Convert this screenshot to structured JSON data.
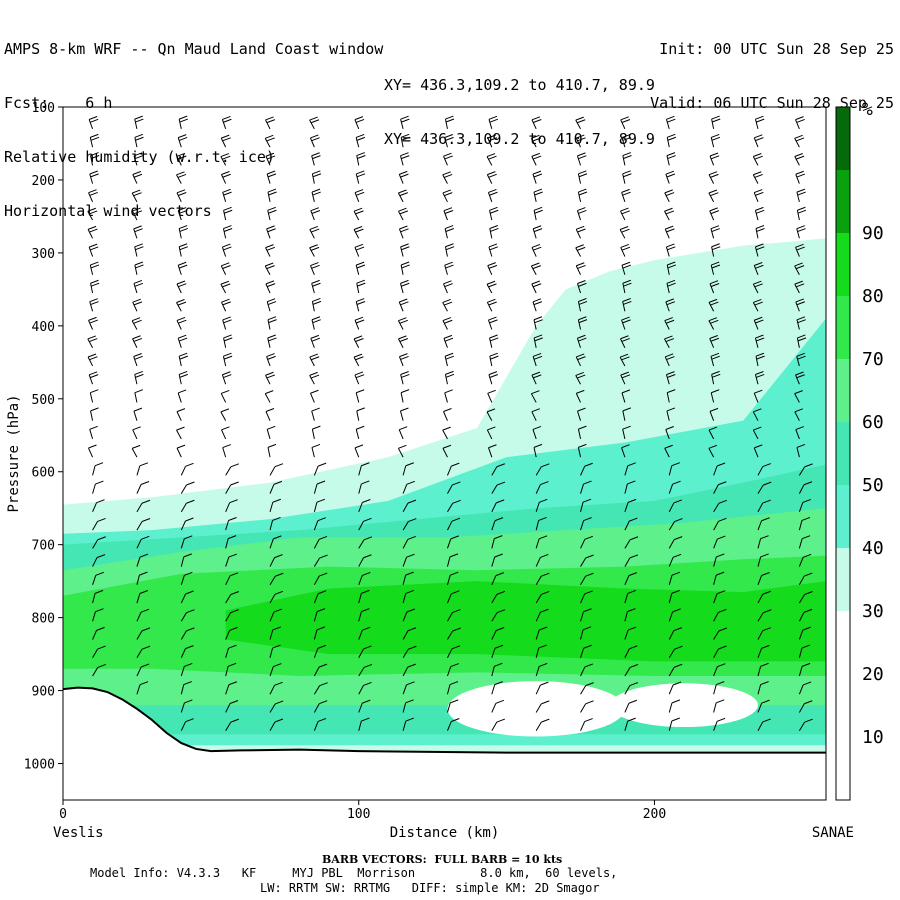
{
  "header": {
    "title": "AMPS 8-km WRF -- Qn Maud Land Coast window",
    "fcst": "Fcst:    6 h",
    "line3": "Relative humidity (w.r.t. ice)",
    "line4": "Horizontal wind vectors",
    "xy1": "XY= 436.3,109.2 to 410.7, 89.9",
    "xy2": "XY= 436.3,109.2 to 410.7, 89.9",
    "init": "Init: 00 UTC Sun 28 Sep 25",
    "valid": "Valid: 06 UTC Sun 28 Sep 25"
  },
  "footer": {
    "barb": "BARB VECTORS:  FULL BARB = 10 kts",
    "model": "Model Info: V4.3.3   KF     MYJ PBL  Morrison         8.0 km,  60 levels,",
    "phys": "LW: RRTM SW: RRTMG   DIFF: simple KM: 2D Smagor"
  },
  "colors": {
    "rh_30": "#c6fbe9",
    "rh_40": "#5cf0cf",
    "rh_50": "#44e6b4",
    "rh_60": "#5ef08a",
    "rh_70": "#33e84b",
    "rh_80": "#14dc1c",
    "rh_90": "#0aa10e",
    "rh_top": "#066a0a",
    "terrain": "#000000",
    "barb": "#000000"
  },
  "chart_data": {
    "type": "cross-section",
    "xlabel": "Distance (km)",
    "ylabel": "Pressure (hPa)",
    "x_left_label": "Veslis",
    "x_right_label": "SANAE",
    "xlim": [
      0,
      258
    ],
    "ylim": [
      1050,
      100
    ],
    "x_ticks": [
      0,
      100,
      200
    ],
    "y_ticks": [
      100,
      200,
      300,
      400,
      500,
      600,
      700,
      800,
      900,
      1000
    ],
    "colorbar": {
      "unit": "%",
      "levels": [
        10,
        20,
        30,
        40,
        50,
        60,
        70,
        80,
        90
      ],
      "band_colors": [
        "#ffffff",
        "#ffffff",
        "#ffffff",
        "#c6fbe9",
        "#5cf0cf",
        "#44e6b4",
        "#5ef08a",
        "#33e84b",
        "#14dc1c",
        "#0aa10e",
        "#066a0a"
      ]
    },
    "terrain_surface": {
      "x": [
        0,
        5,
        10,
        15,
        20,
        25,
        30,
        35,
        40,
        45,
        50,
        60,
        80,
        100,
        150,
        200,
        258
      ],
      "p": [
        898,
        896,
        897,
        902,
        912,
        925,
        940,
        958,
        972,
        980,
        983,
        982,
        981,
        983,
        985,
        985,
        985
      ]
    },
    "rh_regions": [
      {
        "level": 30,
        "x": [
          160,
          170,
          185,
          200,
          215,
          230,
          245,
          258,
          258,
          200,
          150,
          100,
          60,
          20,
          0,
          0,
          30,
          70,
          110,
          140,
          160
        ],
        "p": [
          400,
          350,
          325,
          310,
          300,
          290,
          285,
          280,
          985,
          985,
          985,
          985,
          985,
          985,
          985,
          645,
          635,
          615,
          580,
          540,
          400
        ]
      },
      {
        "level": 40,
        "x": [
          0,
          30,
          70,
          110,
          150,
          190,
          230,
          258,
          258,
          200,
          150,
          100,
          50,
          0
        ],
        "p": [
          685,
          680,
          665,
          640,
          580,
          560,
          530,
          390,
          975,
          975,
          975,
          975,
          975,
          975
        ]
      },
      {
        "level": 50,
        "x": [
          0,
          40,
          80,
          120,
          160,
          200,
          230,
          258,
          258,
          0
        ],
        "p": [
          700,
          690,
          680,
          665,
          650,
          640,
          615,
          590,
          960,
          960
        ]
      },
      {
        "level": 60,
        "x": [
          0,
          40,
          80,
          130,
          170,
          210,
          258,
          258,
          0
        ],
        "p": [
          735,
          710,
          690,
          690,
          680,
          670,
          650,
          920,
          920
        ]
      },
      {
        "level": 70,
        "x": [
          0,
          40,
          90,
          140,
          190,
          230,
          258,
          258,
          200,
          140,
          80,
          30,
          0
        ],
        "p": [
          770,
          740,
          730,
          735,
          730,
          720,
          715,
          880,
          880,
          875,
          880,
          870,
          870
        ]
      },
      {
        "level": 80,
        "x": [
          55,
          90,
          140,
          190,
          230,
          258,
          258,
          200,
          140,
          90,
          55
        ],
        "p": [
          790,
          760,
          750,
          760,
          765,
          750,
          860,
          860,
          850,
          850,
          830
        ]
      }
    ],
    "dry_pockets": [
      {
        "x_center": 160,
        "p_center": 925,
        "x_radius": 30,
        "p_radius": 38
      },
      {
        "x_center": 210,
        "p_center": 920,
        "x_radius": 25,
        "p_radius": 30
      }
    ],
    "barb_columns_x": [
      10,
      25,
      40,
      55,
      70,
      85,
      100,
      115,
      130,
      145,
      160,
      175,
      190,
      205,
      220,
      235,
      249
    ],
    "barb_levels_p": [
      130,
      155,
      180,
      205,
      230,
      255,
      280,
      305,
      330,
      355,
      380,
      405,
      430,
      455,
      480,
      505,
      530,
      555,
      580,
      605,
      630,
      655,
      680,
      705,
      730,
      755,
      780,
      805,
      830,
      855,
      880,
      905,
      930,
      955
    ]
  }
}
